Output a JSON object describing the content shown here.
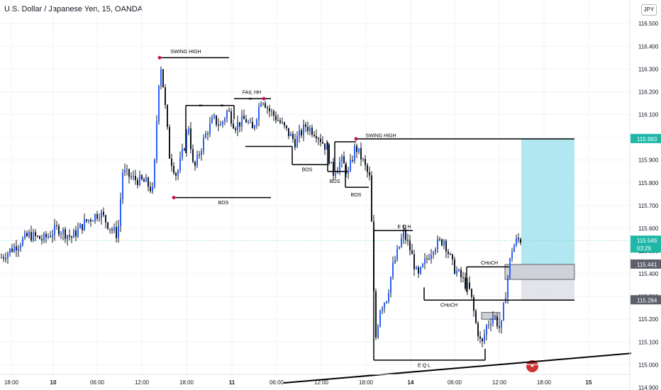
{
  "header": {
    "title": "U.S. Dollar / Japanese Yen, 15, OANDA",
    "currency": "JPY"
  },
  "countdown": "03:26",
  "colors": {
    "up": "#2962ff",
    "down": "#131722",
    "wick": "#131722",
    "target_zone": "#a8e4f0",
    "current_price_line": "#7fd6c8",
    "current_price_badge": "#1fb8a8",
    "gray_badge": "#5d606b",
    "swing_dot": "#c2185b"
  },
  "chart_data": {
    "type": "candlestick",
    "title": "U.S. Dollar / Japanese Yen, 15, OANDA",
    "ylim": [
      114.92,
      116.56
    ],
    "y_ticks": [
      "116.500",
      "116.400",
      "116.300",
      "116.200",
      "116.100",
      "116.000",
      "115.900",
      "115.800",
      "115.700",
      "115.600",
      "115.500",
      "115.400",
      "115.300",
      "115.200",
      "115.100",
      "115.000",
      "114.900"
    ],
    "x_ticks": [
      "18:00",
      "10",
      "06:00",
      "12:00",
      "18:00",
      "11",
      "06:00",
      "12:00",
      "18:00",
      "14",
      "06:00",
      "12:00",
      "18:00",
      "15"
    ],
    "current_price": 115.546,
    "price_badges": [
      115.993,
      115.546,
      115.441,
      115.284
    ],
    "path": [
      [
        0,
        115.47
      ],
      [
        20,
        115.52
      ],
      [
        40,
        115.57
      ],
      [
        60,
        115.55
      ],
      [
        80,
        115.6
      ],
      [
        100,
        115.56
      ],
      [
        120,
        115.63
      ],
      [
        140,
        115.67
      ],
      [
        155,
        115.6
      ],
      [
        165,
        115.57
      ],
      [
        172,
        115.85
      ],
      [
        185,
        115.82
      ],
      [
        205,
        115.8
      ],
      [
        215,
        115.76
      ],
      [
        222,
        116.2
      ],
      [
        225,
        116.34
      ],
      [
        230,
        116.2
      ],
      [
        238,
        115.92
      ],
      [
        248,
        115.83
      ],
      [
        258,
        115.95
      ],
      [
        265,
        116.05
      ],
      [
        272,
        115.85
      ],
      [
        282,
        115.95
      ],
      [
        290,
        116.02
      ],
      [
        300,
        116.08
      ],
      [
        310,
        116.05
      ],
      [
        320,
        116.12
      ],
      [
        330,
        116.05
      ],
      [
        345,
        116.08
      ],
      [
        355,
        116.03
      ],
      [
        368,
        116.18
      ],
      [
        378,
        116.12
      ],
      [
        390,
        116.08
      ],
      [
        405,
        116.02
      ],
      [
        415,
        115.98
      ],
      [
        430,
        116.05
      ],
      [
        445,
        116.02
      ],
      [
        460,
        115.95
      ],
      [
        468,
        115.84
      ],
      [
        480,
        115.9
      ],
      [
        490,
        115.84
      ],
      [
        500,
        115.96
      ],
      [
        510,
        115.9
      ],
      [
        520,
        115.82
      ],
      [
        523,
        115.62
      ],
      [
        528,
        115.1
      ],
      [
        535,
        115.25
      ],
      [
        545,
        115.3
      ],
      [
        552,
        115.42
      ],
      [
        560,
        115.5
      ],
      [
        568,
        115.58
      ],
      [
        578,
        115.5
      ],
      [
        588,
        115.38
      ],
      [
        598,
        115.45
      ],
      [
        610,
        115.52
      ],
      [
        625,
        115.55
      ],
      [
        638,
        115.43
      ],
      [
        650,
        115.38
      ],
      [
        662,
        115.32
      ],
      [
        670,
        115.18
      ],
      [
        678,
        115.08
      ],
      [
        685,
        115.17
      ],
      [
        695,
        115.22
      ],
      [
        705,
        115.15
      ],
      [
        712,
        115.32
      ],
      [
        720,
        115.5
      ],
      [
        728,
        115.55
      ],
      [
        735,
        115.55
      ]
    ],
    "annotations": [
      {
        "text": "SWING HIGH"
      },
      {
        "text": "FAIL HH"
      },
      {
        "text": "SWING HIGH"
      },
      {
        "text": "BOS"
      },
      {
        "text": "BOS"
      },
      {
        "text": "BOS"
      },
      {
        "text": "BOS"
      },
      {
        "text": "E Q H"
      },
      {
        "text": "CHoCH"
      },
      {
        "text": "CHoCH"
      },
      {
        "text": "E Q L"
      }
    ]
  }
}
